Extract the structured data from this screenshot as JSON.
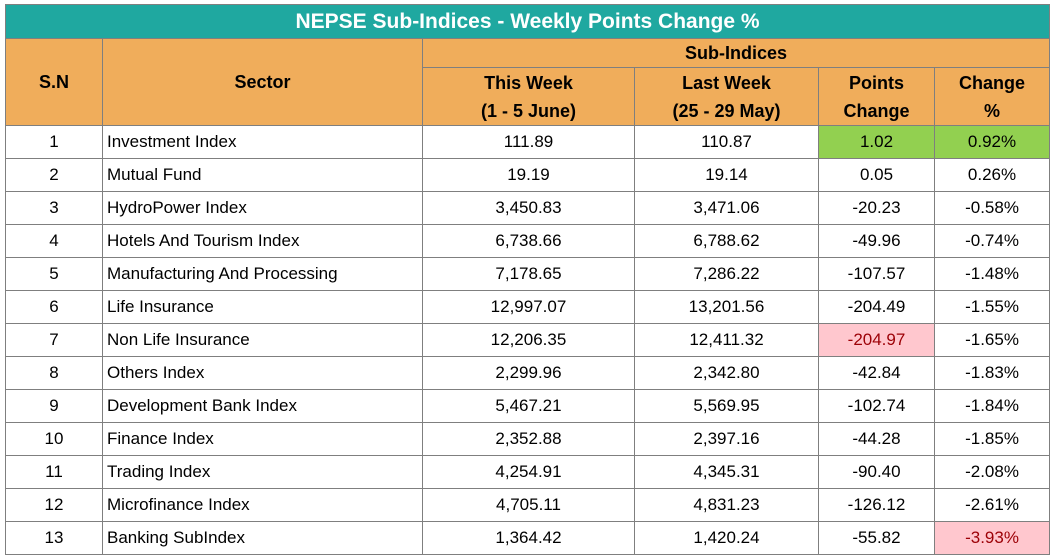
{
  "title": "NEPSE Sub-Indices - Weekly Points Change %",
  "headers": {
    "sn": "S.N",
    "sector": "Sector",
    "group": "Sub-Indices",
    "this_week": "This Week",
    "this_week_range": "(1 - 5 June)",
    "last_week": "Last Week",
    "last_week_range": "(25 - 29 May)",
    "points_change_1": "Points",
    "points_change_2": "Change",
    "change_pct_1": "Change",
    "change_pct_2": "%"
  },
  "highlight_colors": {
    "positive": "#92d050",
    "negative": "#ffc7ce"
  },
  "rows": [
    {
      "sn": "1",
      "sector": "Investment Index",
      "this_week": "111.89",
      "last_week": "110.87",
      "points_change": "1.02",
      "change_pct": "0.92%",
      "points_hl": "positive",
      "pct_hl": "positive"
    },
    {
      "sn": "2",
      "sector": "Mutual Fund",
      "this_week": "19.19",
      "last_week": "19.14",
      "points_change": "0.05",
      "change_pct": "0.26%",
      "points_hl": "",
      "pct_hl": ""
    },
    {
      "sn": "3",
      "sector": "HydroPower Index",
      "this_week": "3,450.83",
      "last_week": "3,471.06",
      "points_change": "-20.23",
      "change_pct": "-0.58%",
      "points_hl": "",
      "pct_hl": ""
    },
    {
      "sn": "4",
      "sector": "Hotels And Tourism Index",
      "this_week": "6,738.66",
      "last_week": "6,788.62",
      "points_change": "-49.96",
      "change_pct": "-0.74%",
      "points_hl": "",
      "pct_hl": ""
    },
    {
      "sn": "5",
      "sector": "Manufacturing And Processing",
      "this_week": "7,178.65",
      "last_week": "7,286.22",
      "points_change": "-107.57",
      "change_pct": "-1.48%",
      "points_hl": "",
      "pct_hl": ""
    },
    {
      "sn": "6",
      "sector": "Life Insurance",
      "this_week": "12,997.07",
      "last_week": "13,201.56",
      "points_change": "-204.49",
      "change_pct": "-1.55%",
      "points_hl": "",
      "pct_hl": ""
    },
    {
      "sn": "7",
      "sector": "Non Life Insurance",
      "this_week": "12,206.35",
      "last_week": "12,411.32",
      "points_change": "-204.97",
      "change_pct": "-1.65%",
      "points_hl": "negative",
      "pct_hl": ""
    },
    {
      "sn": "8",
      "sector": "Others Index",
      "this_week": "2,299.96",
      "last_week": "2,342.80",
      "points_change": "-42.84",
      "change_pct": "-1.83%",
      "points_hl": "",
      "pct_hl": ""
    },
    {
      "sn": "9",
      "sector": "Development Bank Index",
      "this_week": "5,467.21",
      "last_week": "5,569.95",
      "points_change": "-102.74",
      "change_pct": "-1.84%",
      "points_hl": "",
      "pct_hl": ""
    },
    {
      "sn": "10",
      "sector": "Finance Index",
      "this_week": "2,352.88",
      "last_week": "2,397.16",
      "points_change": "-44.28",
      "change_pct": "-1.85%",
      "points_hl": "",
      "pct_hl": ""
    },
    {
      "sn": "11",
      "sector": "Trading Index",
      "this_week": "4,254.91",
      "last_week": "4,345.31",
      "points_change": "-90.40",
      "change_pct": "-2.08%",
      "points_hl": "",
      "pct_hl": ""
    },
    {
      "sn": "12",
      "sector": "Microfinance Index",
      "this_week": "4,705.11",
      "last_week": "4,831.23",
      "points_change": "-126.12",
      "change_pct": "-2.61%",
      "points_hl": "",
      "pct_hl": ""
    },
    {
      "sn": "13",
      "sector": "Banking SubIndex",
      "this_week": "1,364.42",
      "last_week": "1,420.24",
      "points_change": "-55.82",
      "change_pct": "-3.93%",
      "points_hl": "",
      "pct_hl": "negative"
    }
  ]
}
